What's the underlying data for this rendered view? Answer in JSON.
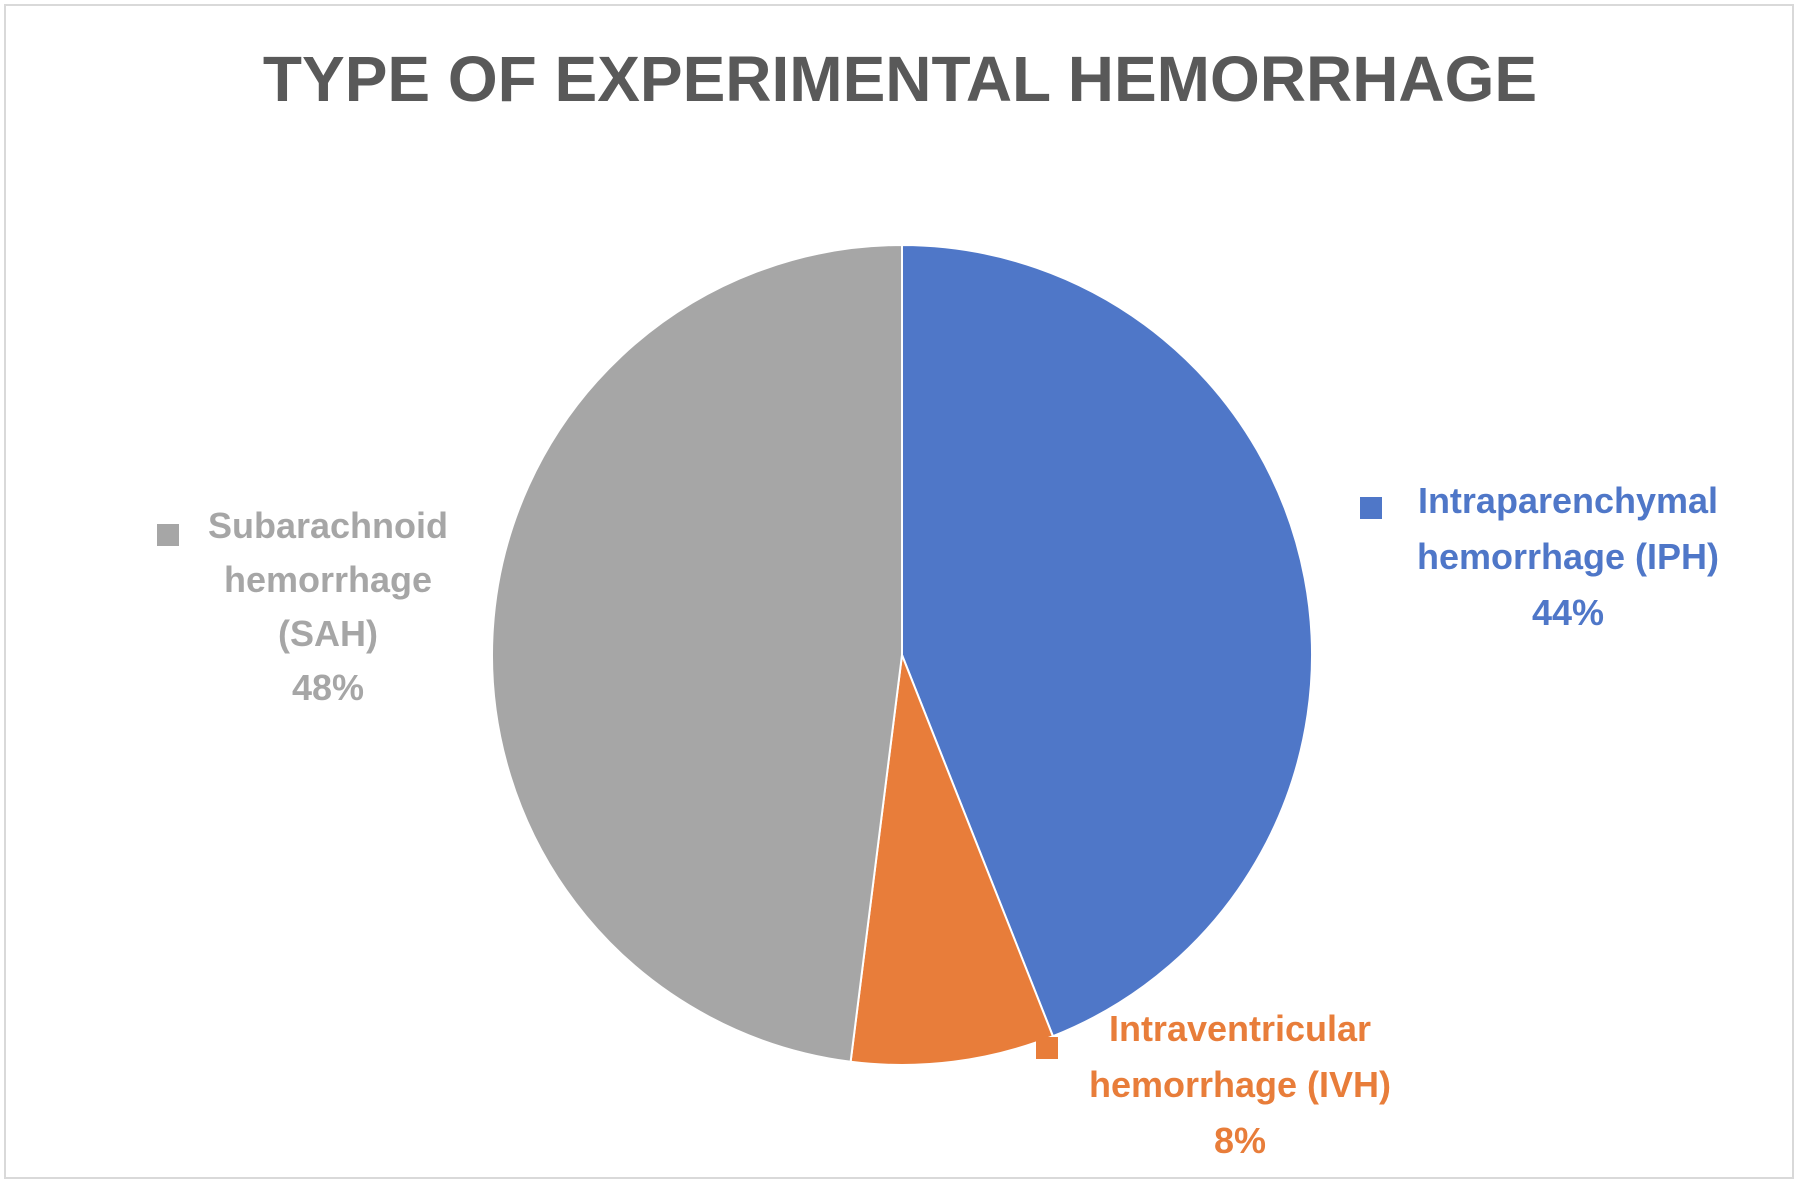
{
  "chart_data": {
    "type": "pie",
    "title": "TYPE OF EXPERIMENTAL HEMORRHAGE",
    "slices": [
      {
        "name": "Intraparenchymal hemorrhage (IPH)",
        "label_lines": [
          "Intraparenchymal",
          "hemorrhage (IPH)"
        ],
        "value": 44,
        "value_label": "44%",
        "color": "#4f77c8"
      },
      {
        "name": "Intraventricular hemorrhage (IVH)",
        "label_lines": [
          "Intraventricular",
          "hemorrhage (IVH)"
        ],
        "value": 8,
        "value_label": "8%",
        "color": "#e87d3a"
      },
      {
        "name": "Subarachnoid hemorrhage (SAH)",
        "label_lines": [
          "Subarachnoid",
          "hemorrhage",
          "(SAH)"
        ],
        "value": 48,
        "value_label": "48%",
        "color": "#a6a6a6"
      }
    ],
    "start_angle": "12 o'clock",
    "direction": "clockwise"
  }
}
